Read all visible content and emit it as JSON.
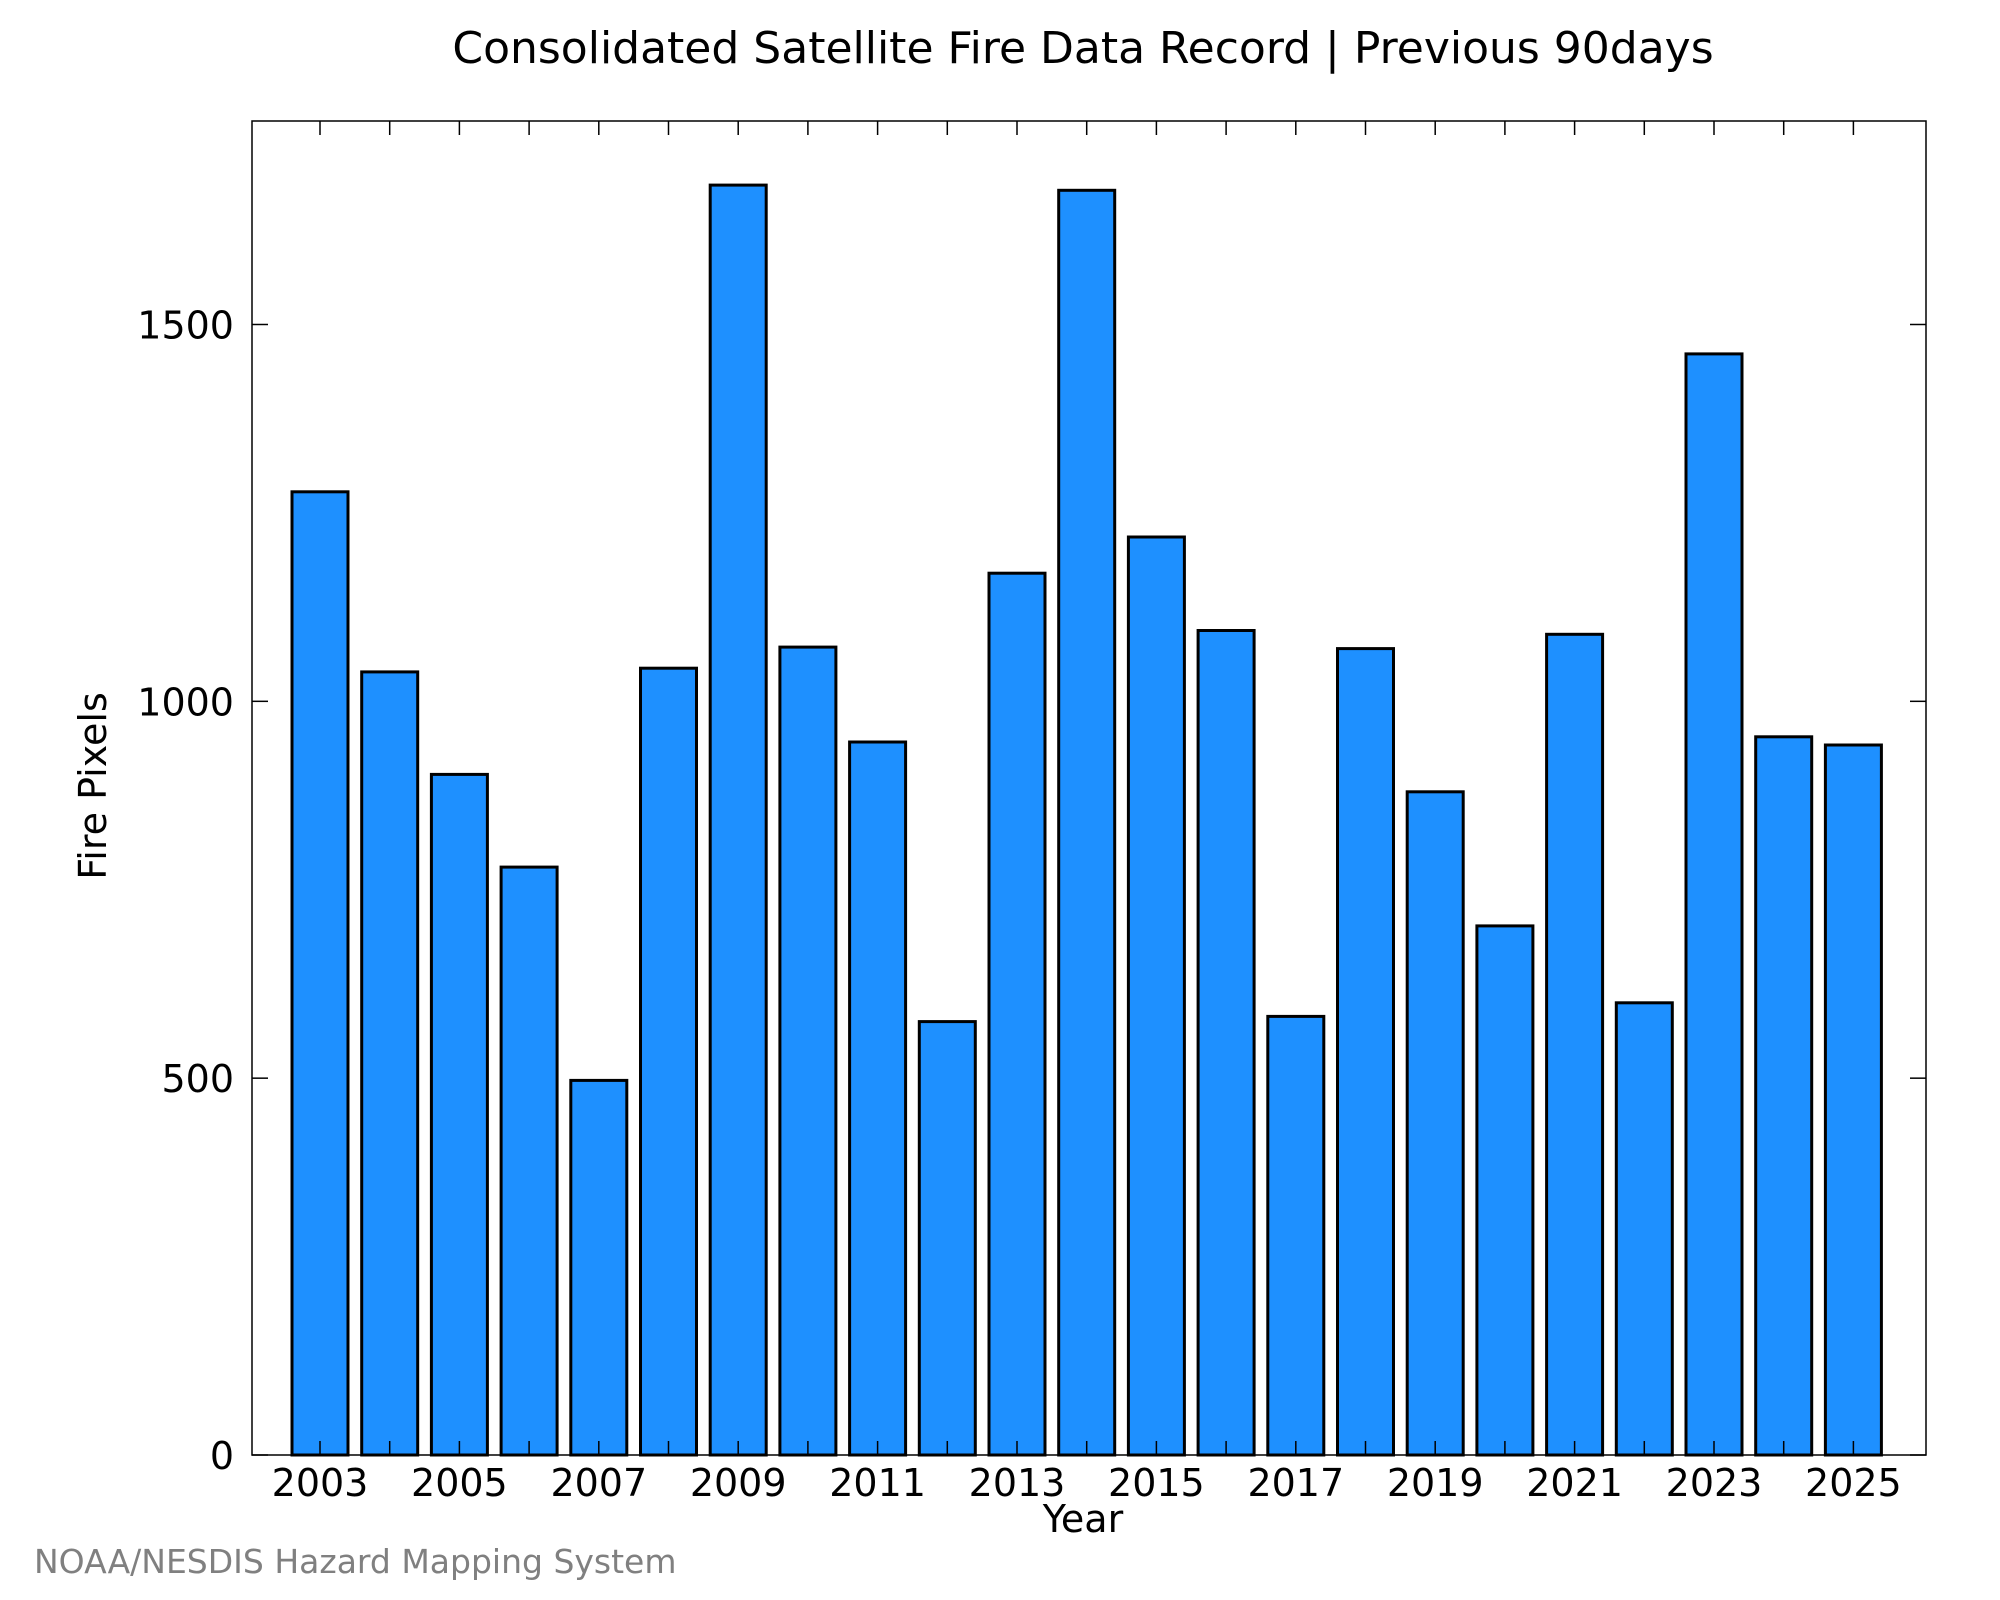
{
  "chart_data": {
    "type": "bar",
    "title": "Consolidated Satellite Fire Data Record | Previous 90days",
    "xlabel": "Year",
    "ylabel": "Fire Pixels",
    "credit": "NOAA/NESDIS Hazard Mapping System",
    "categories": [
      "2003",
      "2004",
      "2005",
      "2006",
      "2007",
      "2008",
      "2009",
      "2010",
      "2011",
      "2012",
      "2013",
      "2014",
      "2015",
      "2016",
      "2017",
      "2018",
      "2019",
      "2020",
      "2021",
      "2022",
      "2023",
      "2024",
      "2025"
    ],
    "x_tick_labels": [
      "2003",
      "2005",
      "2007",
      "2009",
      "2011",
      "2013",
      "2015",
      "2017",
      "2019",
      "2021",
      "2023",
      "2025"
    ],
    "values": [
      1278,
      1039,
      903,
      780,
      497,
      1044,
      1685,
      1072,
      946,
      575,
      1170,
      1678,
      1218,
      1094,
      582,
      1070,
      880,
      702,
      1089,
      600,
      1461,
      953,
      942
    ],
    "ylim": [
      0,
      1770
    ],
    "y_ticks": [
      0,
      500,
      1000,
      1500
    ],
    "y_tick_labels": [
      "0",
      "500",
      "1000",
      "1500"
    ],
    "grid": false,
    "legend": false,
    "colors": {
      "bar_fill": "#1E90FF",
      "bar_edge": "#000000",
      "text": "#000000",
      "credit": "#808080",
      "background": "#ffffff"
    }
  }
}
